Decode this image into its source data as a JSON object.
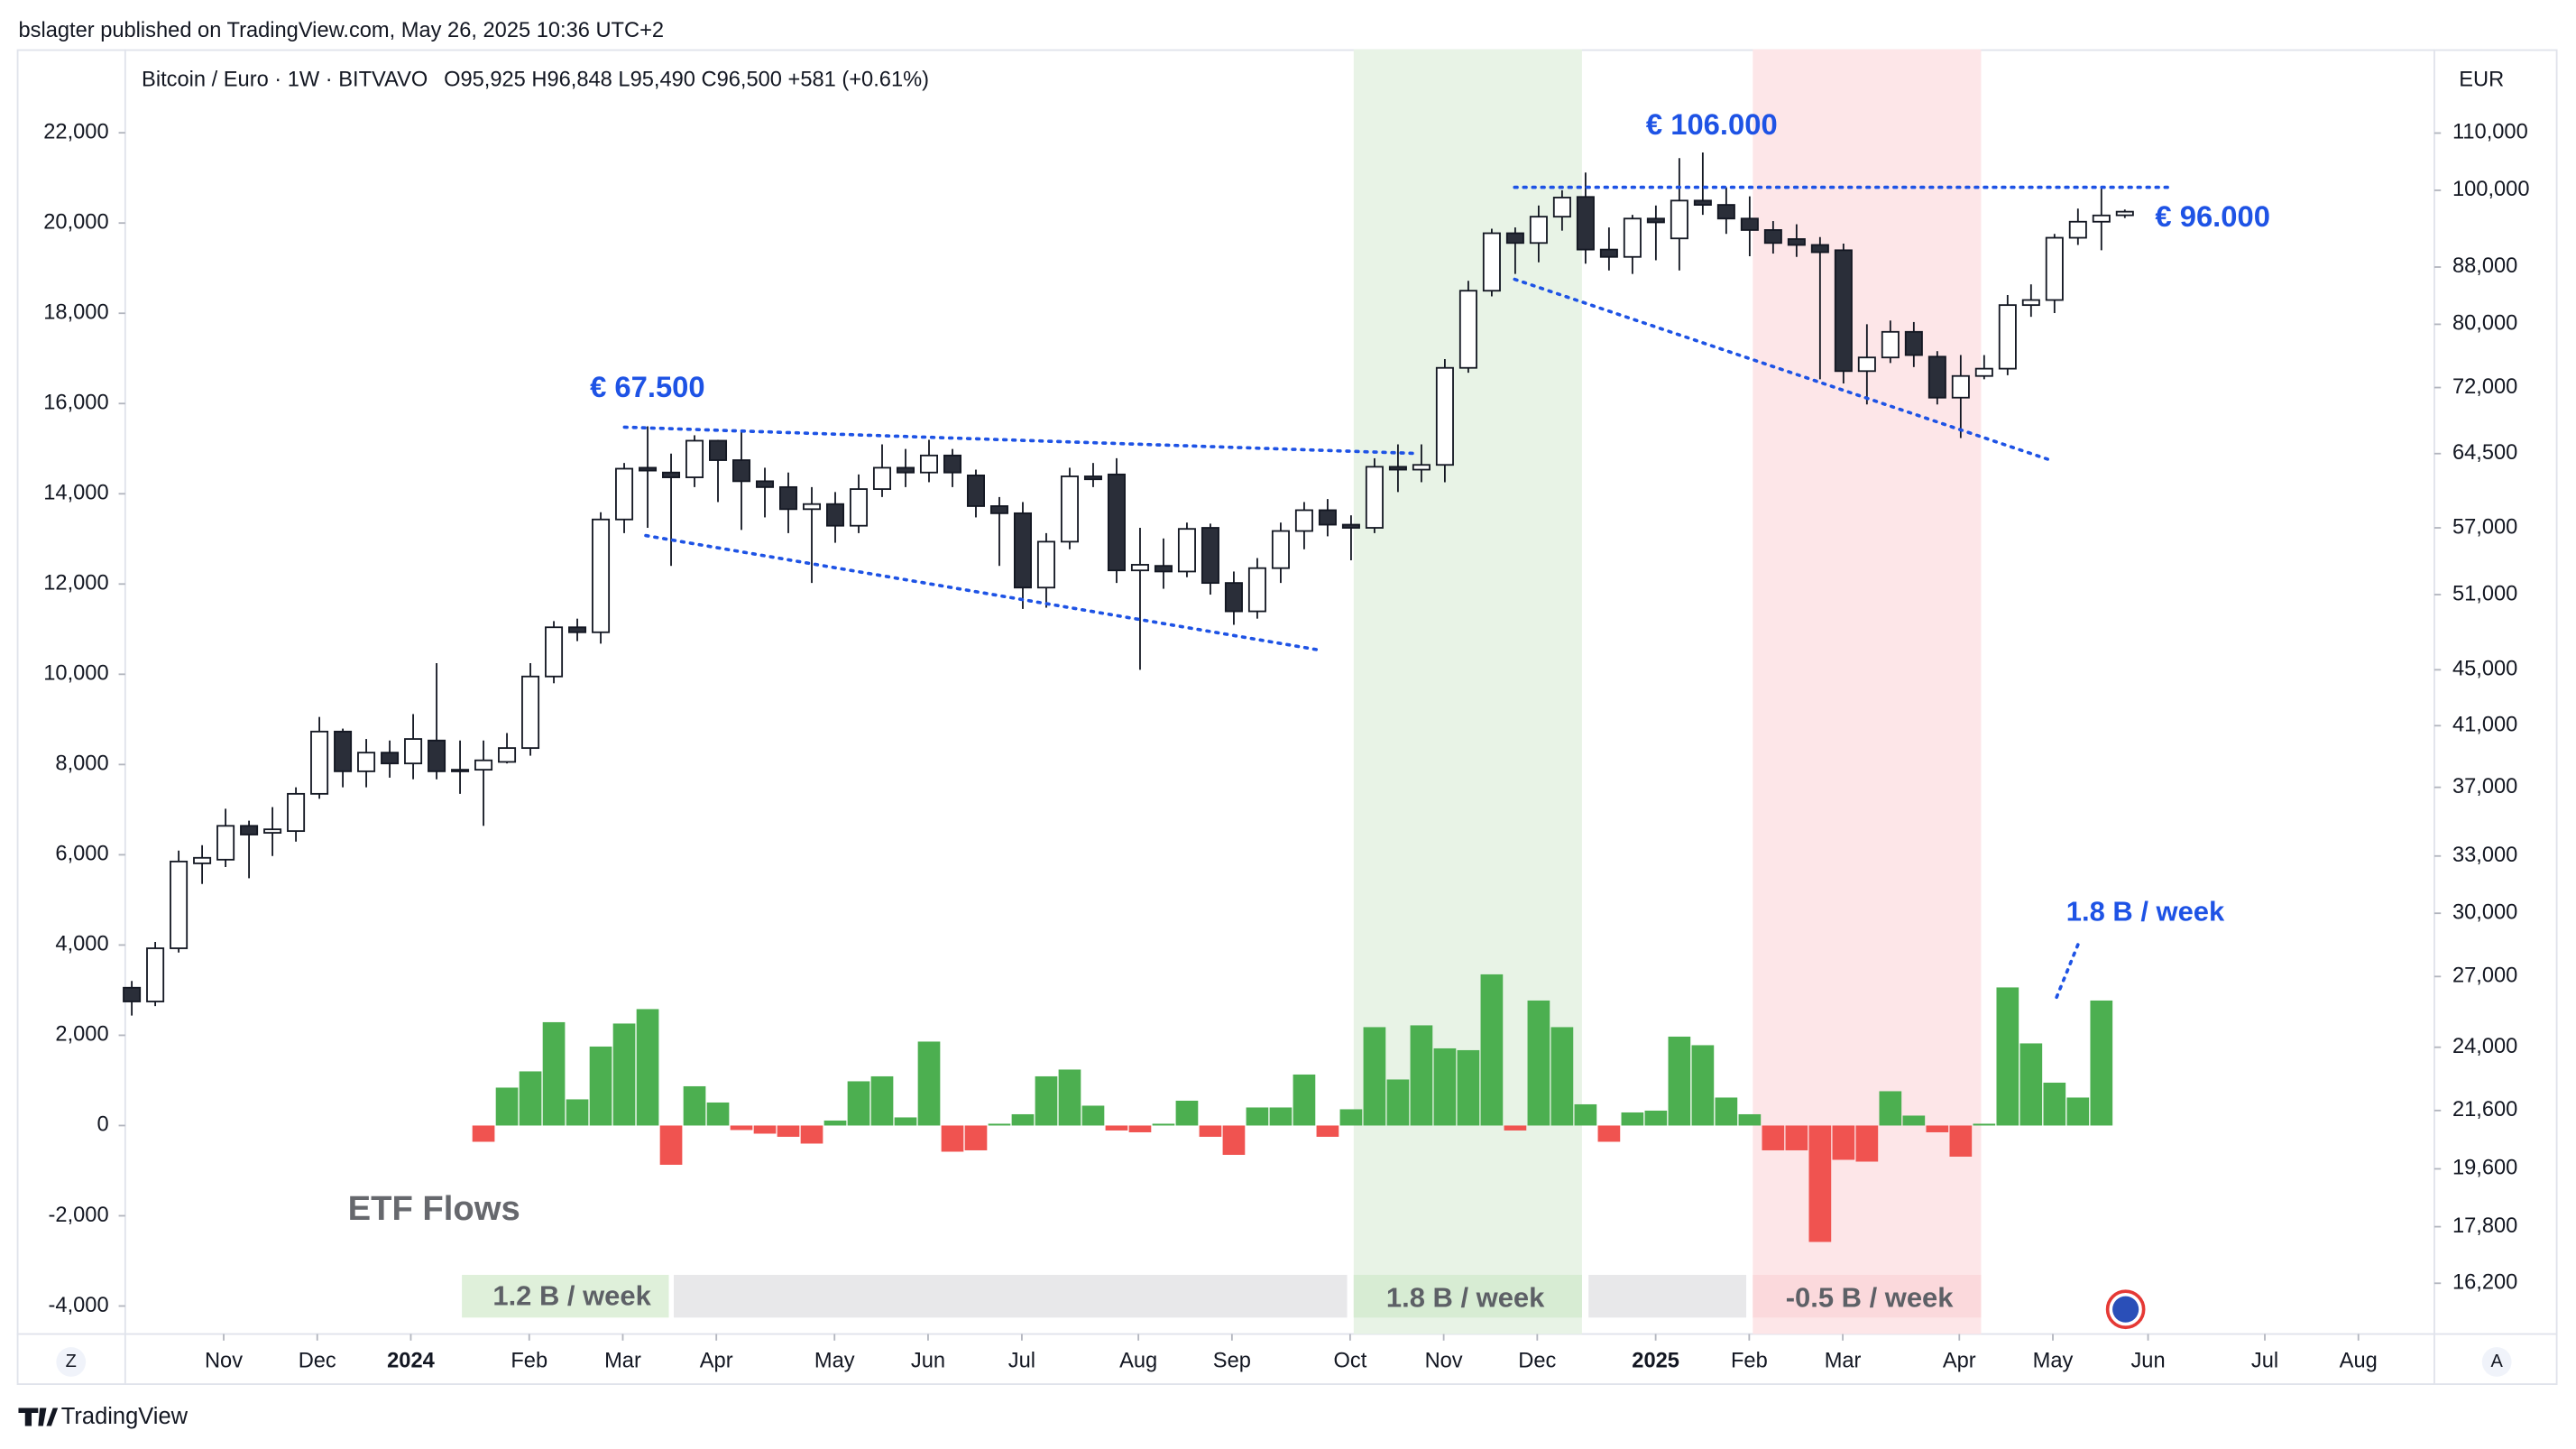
{
  "header": {
    "publisher": "bslagter published on TradingView.com, May 26, 2025 10:36 UTC+2"
  },
  "ui": {
    "zoom_button": "Z",
    "auto_button": "A",
    "logo": "TradingView"
  },
  "chart_data": {
    "type": "candlestick",
    "title": "Bitcoin / Euro · 1W · BITVAVO",
    "subtitle": "O95,925 H96,848 L95,490 C96,500 +581 (+0.61%)",
    "currency": "EUR",
    "log_scale": true,
    "grid": false,
    "up_color": "#ffffff",
    "down_color": "#2a2e39",
    "wick_color": "#131722",
    "open": [
      26500,
      25900,
      28300,
      32600,
      32800,
      34700,
      34300,
      34400,
      36600,
      40600,
      38000,
      39200,
      38500,
      40000,
      38000,
      38100,
      38600,
      39500,
      44500,
      48300,
      47900,
      57800,
      63000,
      62500,
      62000,
      65900,
      63800,
      61600,
      61000,
      58800,
      59300,
      57200,
      60800,
      63000,
      62500,
      64300,
      62200,
      59100,
      58400,
      51600,
      55700,
      62100,
      62300,
      53100,
      53500,
      53000,
      57000,
      52000,
      49600,
      53300,
      56700,
      58700,
      57300,
      57000,
      63100,
      62800,
      63300,
      74400,
      84600,
      93100,
      91600,
      95700,
      98900,
      90600,
      89500,
      95400,
      92300,
      98300,
      97600,
      95400,
      93600,
      92200,
      91300,
      90500,
      74000,
      75700,
      79000,
      75800,
      70800,
      73400,
      74300,
      82600,
      83300,
      92400,
      94900,
      95925
    ],
    "high": [
      26800,
      28600,
      33300,
      33600,
      35700,
      35000,
      35800,
      37000,
      41600,
      40800,
      40100,
      40000,
      41800,
      45500,
      40000,
      40000,
      40500,
      45500,
      48800,
      49000,
      58500,
      63500,
      67500,
      64500,
      66500,
      66000,
      67000,
      63000,
      62500,
      61000,
      60500,
      62300,
      65500,
      65000,
      66000,
      65000,
      62800,
      60000,
      59500,
      56500,
      63000,
      63500,
      64000,
      57000,
      56000,
      57500,
      57400,
      53000,
      54200,
      57500,
      59500,
      59800,
      58200,
      64000,
      65500,
      65500,
      75500,
      86000,
      93800,
      94000,
      97500,
      100000,
      103000,
      94000,
      96000,
      97500,
      105500,
      106500,
      100500,
      99000,
      95000,
      94500,
      92500,
      91500,
      80000,
      80500,
      80300,
      76500,
      76000,
      76000,
      84000,
      85500,
      93000,
      97000,
      100500,
      96848
    ],
    "low": [
      25300,
      25700,
      28100,
      31500,
      32400,
      31800,
      33000,
      33800,
      36300,
      37000,
      37000,
      37600,
      37500,
      37500,
      36600,
      34700,
      38500,
      39000,
      44000,
      47200,
      47000,
      56500,
      57000,
      53500,
      61000,
      59500,
      56800,
      58000,
      56500,
      52000,
      55600,
      56500,
      60000,
      61000,
      61500,
      61000,
      58000,
      53500,
      49800,
      49900,
      55000,
      61000,
      52000,
      45000,
      51500,
      52500,
      51000,
      48500,
      49000,
      52000,
      55000,
      56200,
      54000,
      56500,
      60500,
      61500,
      61500,
      73800,
      83800,
      87000,
      88700,
      93500,
      88500,
      87500,
      87000,
      89000,
      87500,
      96000,
      93000,
      89600,
      90000,
      89500,
      73000,
      72500,
      70000,
      75000,
      74500,
      70000,
      66200,
      73000,
      73500,
      81000,
      81500,
      91300,
      90500,
      95490
    ],
    "close": [
      25900,
      28300,
      32700,
      32900,
      34700,
      34200,
      34500,
      36600,
      40600,
      38000,
      39200,
      38500,
      40100,
      38000,
      38100,
      38700,
      39500,
      44500,
      48300,
      47900,
      57800,
      62900,
      62700,
      62000,
      65900,
      63800,
      61600,
      61000,
      58800,
      59300,
      57200,
      60800,
      63000,
      62500,
      64300,
      62500,
      59100,
      58400,
      51600,
      55700,
      62100,
      61800,
      53100,
      53600,
      53000,
      56900,
      52000,
      49600,
      53300,
      56700,
      58700,
      57300,
      57000,
      63100,
      62800,
      63300,
      74400,
      84600,
      93100,
      91600,
      95700,
      98800,
      90600,
      89500,
      95400,
      94800,
      98300,
      97600,
      95400,
      93600,
      91600,
      91300,
      90200,
      74000,
      75700,
      79000,
      76000,
      70800,
      73400,
      74300,
      82600,
      83300,
      92400,
      94900,
      95900,
      96500
    ],
    "series": [
      {
        "name": "ETF Flows",
        "axis": "y2",
        "color": "#4caf50",
        "negative_color": "#f05350",
        "values": [
          null,
          null,
          null,
          null,
          null,
          null,
          null,
          null,
          null,
          null,
          null,
          null,
          null,
          null,
          null,
          -360,
          840,
          1200,
          2290,
          580,
          1750,
          2260,
          2580,
          -870,
          870,
          510,
          -100,
          -180,
          -250,
          -400,
          110,
          980,
          1090,
          180,
          1860,
          -580,
          -550,
          40,
          250,
          1090,
          1240,
          440,
          -110,
          -150,
          40,
          550,
          -250,
          -650,
          400,
          400,
          1130,
          -250,
          360,
          2180,
          1020,
          2220,
          1710,
          1670,
          3350,
          -110,
          2770,
          2180,
          470,
          -360,
          290,
          330,
          1970,
          1780,
          620,
          250,
          -550,
          -550,
          -2580,
          -760,
          -800,
          760,
          220,
          -150,
          -690,
          40,
          3060,
          1820,
          950,
          620,
          2770,
          null
        ]
      }
    ],
    "xlim": [
      -0.28,
      98.2
    ],
    "xticks": [
      {
        "value": 3.92,
        "label": "Nov"
      },
      {
        "value": 7.91,
        "label": "Dec"
      },
      {
        "value": 11.9,
        "label": "2024"
      },
      {
        "value": 16.95,
        "label": "Feb"
      },
      {
        "value": 20.94,
        "label": "Mar"
      },
      {
        "value": 24.93,
        "label": "Apr"
      },
      {
        "value": 29.97,
        "label": "May"
      },
      {
        "value": 33.96,
        "label": "Jun"
      },
      {
        "value": 37.96,
        "label": "Jul"
      },
      {
        "value": 42.93,
        "label": "Aug"
      },
      {
        "value": 46.92,
        "label": "Sep"
      },
      {
        "value": 51.96,
        "label": "Oct"
      },
      {
        "value": 55.95,
        "label": "Nov"
      },
      {
        "value": 59.94,
        "label": "Dec"
      },
      {
        "value": 64.99,
        "label": "2025"
      },
      {
        "value": 68.98,
        "label": "Feb"
      },
      {
        "value": 72.97,
        "label": "Mar"
      },
      {
        "value": 77.94,
        "label": "Apr"
      },
      {
        "value": 81.93,
        "label": "May"
      },
      {
        "value": 85.99,
        "label": "Jun"
      },
      {
        "value": 90.97,
        "label": "Jul"
      },
      {
        "value": 94.96,
        "label": "Aug"
      }
    ],
    "ylim": [
      14887,
      126470
    ],
    "yticks": [
      {
        "value": 110000,
        "label": "110,000"
      },
      {
        "value": 100000,
        "label": "100,000"
      },
      {
        "value": 88000,
        "label": "88,000"
      },
      {
        "value": 80000,
        "label": "80,000"
      },
      {
        "value": 72000,
        "label": "72,000"
      },
      {
        "value": 64500,
        "label": "64,500"
      },
      {
        "value": 57000,
        "label": "57,000"
      },
      {
        "value": 51000,
        "label": "51,000"
      },
      {
        "value": 45000,
        "label": "45,000"
      },
      {
        "value": 41000,
        "label": "41,000"
      },
      {
        "value": 37000,
        "label": "37,000"
      },
      {
        "value": 33000,
        "label": "33,000"
      },
      {
        "value": 30000,
        "label": "30,000"
      },
      {
        "value": 27000,
        "label": "27,000"
      },
      {
        "value": 24000,
        "label": "24,000"
      },
      {
        "value": 21600,
        "label": "21,600"
      },
      {
        "value": 19600,
        "label": "19,600"
      },
      {
        "value": 17800,
        "label": "17,800"
      },
      {
        "value": 16200,
        "label": "16,200"
      }
    ],
    "y2lim": [
      -4620,
      23850
    ],
    "y2ticks": [
      {
        "value": 22000,
        "label": "22,000"
      },
      {
        "value": 20000,
        "label": "20,000"
      },
      {
        "value": 18000,
        "label": "18,000"
      },
      {
        "value": 16000,
        "label": "16,000"
      },
      {
        "value": 14000,
        "label": "14,000"
      },
      {
        "value": 12000,
        "label": "12,000"
      },
      {
        "value": 10000,
        "label": "10,000"
      },
      {
        "value": 8000,
        "label": "8,000"
      },
      {
        "value": 6000,
        "label": "6,000"
      },
      {
        "value": 4000,
        "label": "4,000"
      },
      {
        "value": 2000,
        "label": "2,000"
      },
      0,
      {
        "value": -2000,
        "label": "-2,000"
      },
      {
        "value": -4000,
        "label": "-4,000"
      }
    ],
    "annotations": [
      "€ 67.500",
      "€ 106.000",
      "€ 96.000",
      "1.8 B / week"
    ],
    "region_labels": [
      "1.2 B / week",
      "1.8 B / week",
      "-0.5 B / week"
    ]
  }
}
